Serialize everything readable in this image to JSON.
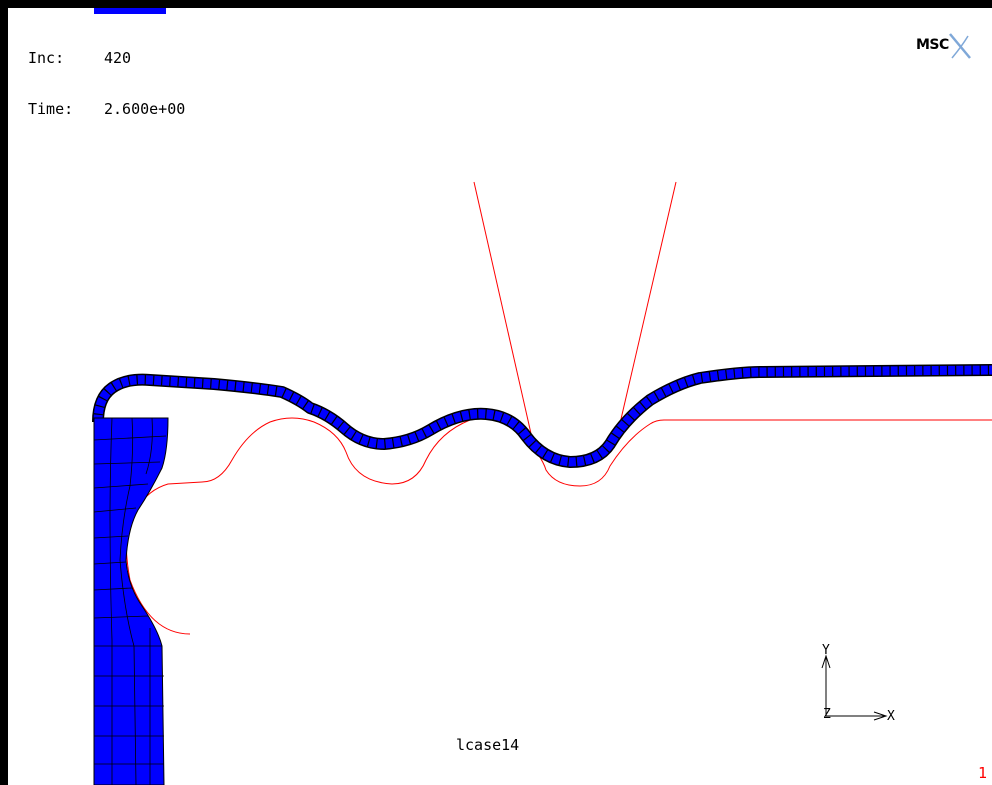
{
  "header": {
    "inc_label": "Inc:",
    "inc_value": "420",
    "time_label": "Time:",
    "time_value": "2.600e+00"
  },
  "logo": {
    "text": "MSC",
    "icon": "msc-logo-icon"
  },
  "viewport": {
    "load_case": "lcase14",
    "page_number": "1"
  },
  "axes": {
    "y": "Y",
    "x": "X",
    "z": "Z"
  },
  "colors": {
    "mesh": "#0000ff",
    "mesh_edge": "#000000",
    "tool_outline": "#ff0000",
    "frame": "#000000"
  }
}
